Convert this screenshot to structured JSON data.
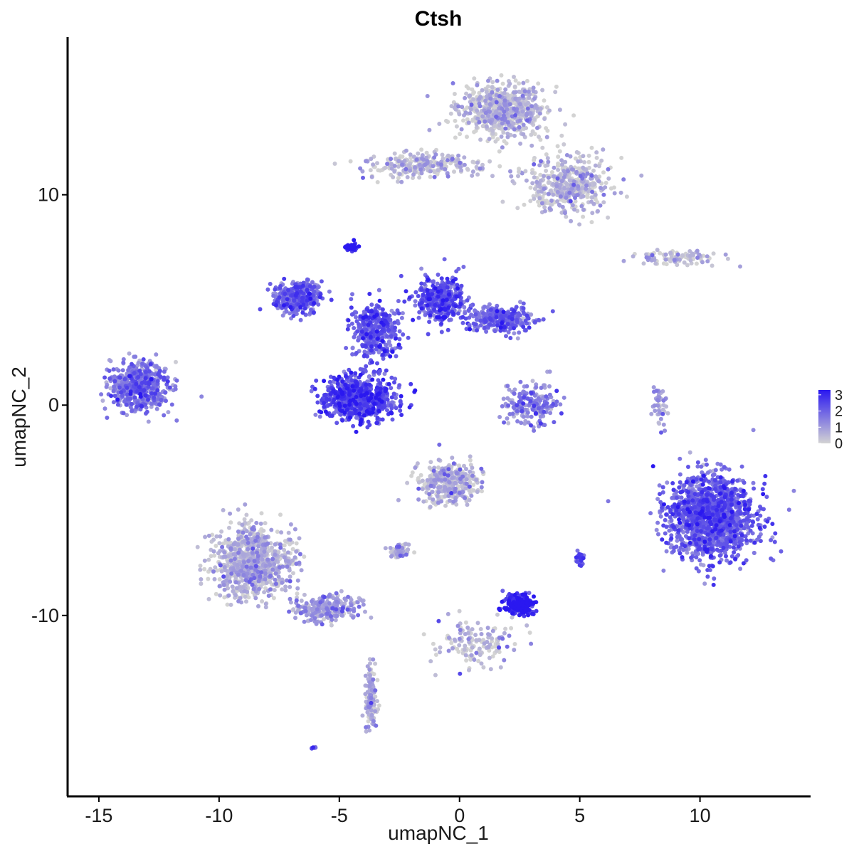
{
  "chart_data": {
    "type": "scatter",
    "title": "Ctsh",
    "xlabel": "umapNC_1",
    "ylabel": "umapNC_2",
    "xlim": [
      -16.3,
      14.6
    ],
    "ylim": [
      -18.6,
      17.5
    ],
    "x_ticks": [
      -15,
      -10,
      -5,
      0,
      5,
      10
    ],
    "x_tick_labels": [
      "-15",
      "-10",
      "-5",
      "0",
      "5",
      "10"
    ],
    "y_ticks": [
      -10,
      0,
      10
    ],
    "y_tick_labels": [
      "-10",
      "0",
      "10"
    ],
    "grid": false,
    "point_color_low": "#d3d3d3",
    "point_color_high": "#2a18f0",
    "legend": {
      "position": "right",
      "min": 0,
      "max": 3.3,
      "ticks": [
        0,
        1,
        2,
        3
      ],
      "tick_labels": [
        "0",
        "1",
        "2",
        "3"
      ]
    },
    "clusters": [
      {
        "name": "top-right-grey",
        "center": [
          1.8,
          14.0
        ],
        "spread": [
          1.5,
          1.0
        ],
        "expression": 0.15,
        "points": 700
      },
      {
        "name": "top-right-arm",
        "center": [
          4.5,
          10.5
        ],
        "spread": [
          1.5,
          1.2
        ],
        "expression": 0.2,
        "points": 450
      },
      {
        "name": "top-left-arm",
        "center": [
          -1.5,
          11.4
        ],
        "spread": [
          2.0,
          0.5
        ],
        "expression": 0.25,
        "points": 250
      },
      {
        "name": "right-thin-strip",
        "center": [
          9.0,
          7.0
        ],
        "spread": [
          1.4,
          0.3
        ],
        "expression": 0.3,
        "points": 100
      },
      {
        "name": "far-left-purple",
        "center": [
          -13.3,
          0.9
        ],
        "spread": [
          1.0,
          0.9
        ],
        "expression": 1.4,
        "points": 600
      },
      {
        "name": "center-top-left-arm",
        "center": [
          -6.7,
          5.1
        ],
        "spread": [
          0.8,
          0.6
        ],
        "expression": 1.7,
        "points": 350
      },
      {
        "name": "center-top-right-arm",
        "center": [
          -0.8,
          5.0
        ],
        "spread": [
          0.8,
          0.9
        ],
        "expression": 1.9,
        "points": 400
      },
      {
        "name": "center-right-extension",
        "center": [
          1.7,
          4.1
        ],
        "spread": [
          1.1,
          0.5
        ],
        "expression": 1.7,
        "points": 300
      },
      {
        "name": "center-bottom-blob",
        "center": [
          -4.2,
          0.3
        ],
        "spread": [
          1.3,
          0.9
        ],
        "expression": 2.2,
        "points": 650
      },
      {
        "name": "center-cross",
        "center": [
          -3.5,
          3.5
        ],
        "spread": [
          0.8,
          1.2
        ],
        "expression": 2.0,
        "points": 350
      },
      {
        "name": "tip-top",
        "center": [
          -4.5,
          7.5
        ],
        "spread": [
          0.2,
          0.15
        ],
        "expression": 3.0,
        "points": 40
      },
      {
        "name": "right-mid-small",
        "center": [
          3.0,
          0.0
        ],
        "spread": [
          0.9,
          0.8
        ],
        "expression": 1.3,
        "points": 180
      },
      {
        "name": "far-right-large",
        "center": [
          10.5,
          -5.3
        ],
        "spread": [
          1.5,
          1.6
        ],
        "expression": 1.8,
        "points": 1500
      },
      {
        "name": "bottom-left-grey",
        "center": [
          -8.6,
          -7.5
        ],
        "spread": [
          1.3,
          1.4
        ],
        "expression": 0.3,
        "points": 900
      },
      {
        "name": "bottom-left-tail",
        "center": [
          -5.5,
          -9.7
        ],
        "spread": [
          1.0,
          0.5
        ],
        "expression": 0.8,
        "points": 220
      },
      {
        "name": "bottom-left-stem",
        "center": [
          -3.7,
          -13.8
        ],
        "spread": [
          0.2,
          1.2
        ],
        "expression": 0.5,
        "points": 130
      },
      {
        "name": "mid-bottom-grey",
        "center": [
          -0.5,
          -3.7
        ],
        "spread": [
          1.0,
          0.8
        ],
        "expression": 0.3,
        "points": 350
      },
      {
        "name": "mid-bottom-small",
        "center": [
          -2.5,
          -6.9
        ],
        "spread": [
          0.4,
          0.3
        ],
        "expression": 0.6,
        "points": 60
      },
      {
        "name": "bright-blue-cluster",
        "center": [
          2.5,
          -9.5
        ],
        "spread": [
          0.5,
          0.35
        ],
        "expression": 2.9,
        "points": 250
      },
      {
        "name": "bottom-center-stem",
        "center": [
          0.6,
          -11.3
        ],
        "spread": [
          1.4,
          0.9
        ],
        "expression": 0.3,
        "points": 140
      },
      {
        "name": "right-small-purple",
        "center": [
          5.0,
          -7.3
        ],
        "spread": [
          0.15,
          0.25
        ],
        "expression": 1.8,
        "points": 30
      },
      {
        "name": "right-vertical-strip",
        "center": [
          8.3,
          -0.0
        ],
        "spread": [
          0.25,
          0.9
        ],
        "expression": 0.7,
        "points": 45
      },
      {
        "name": "far-bottom-dot",
        "center": [
          -6.1,
          -16.3
        ],
        "spread": [
          0.1,
          0.05
        ],
        "expression": 2.0,
        "points": 6
      }
    ]
  }
}
